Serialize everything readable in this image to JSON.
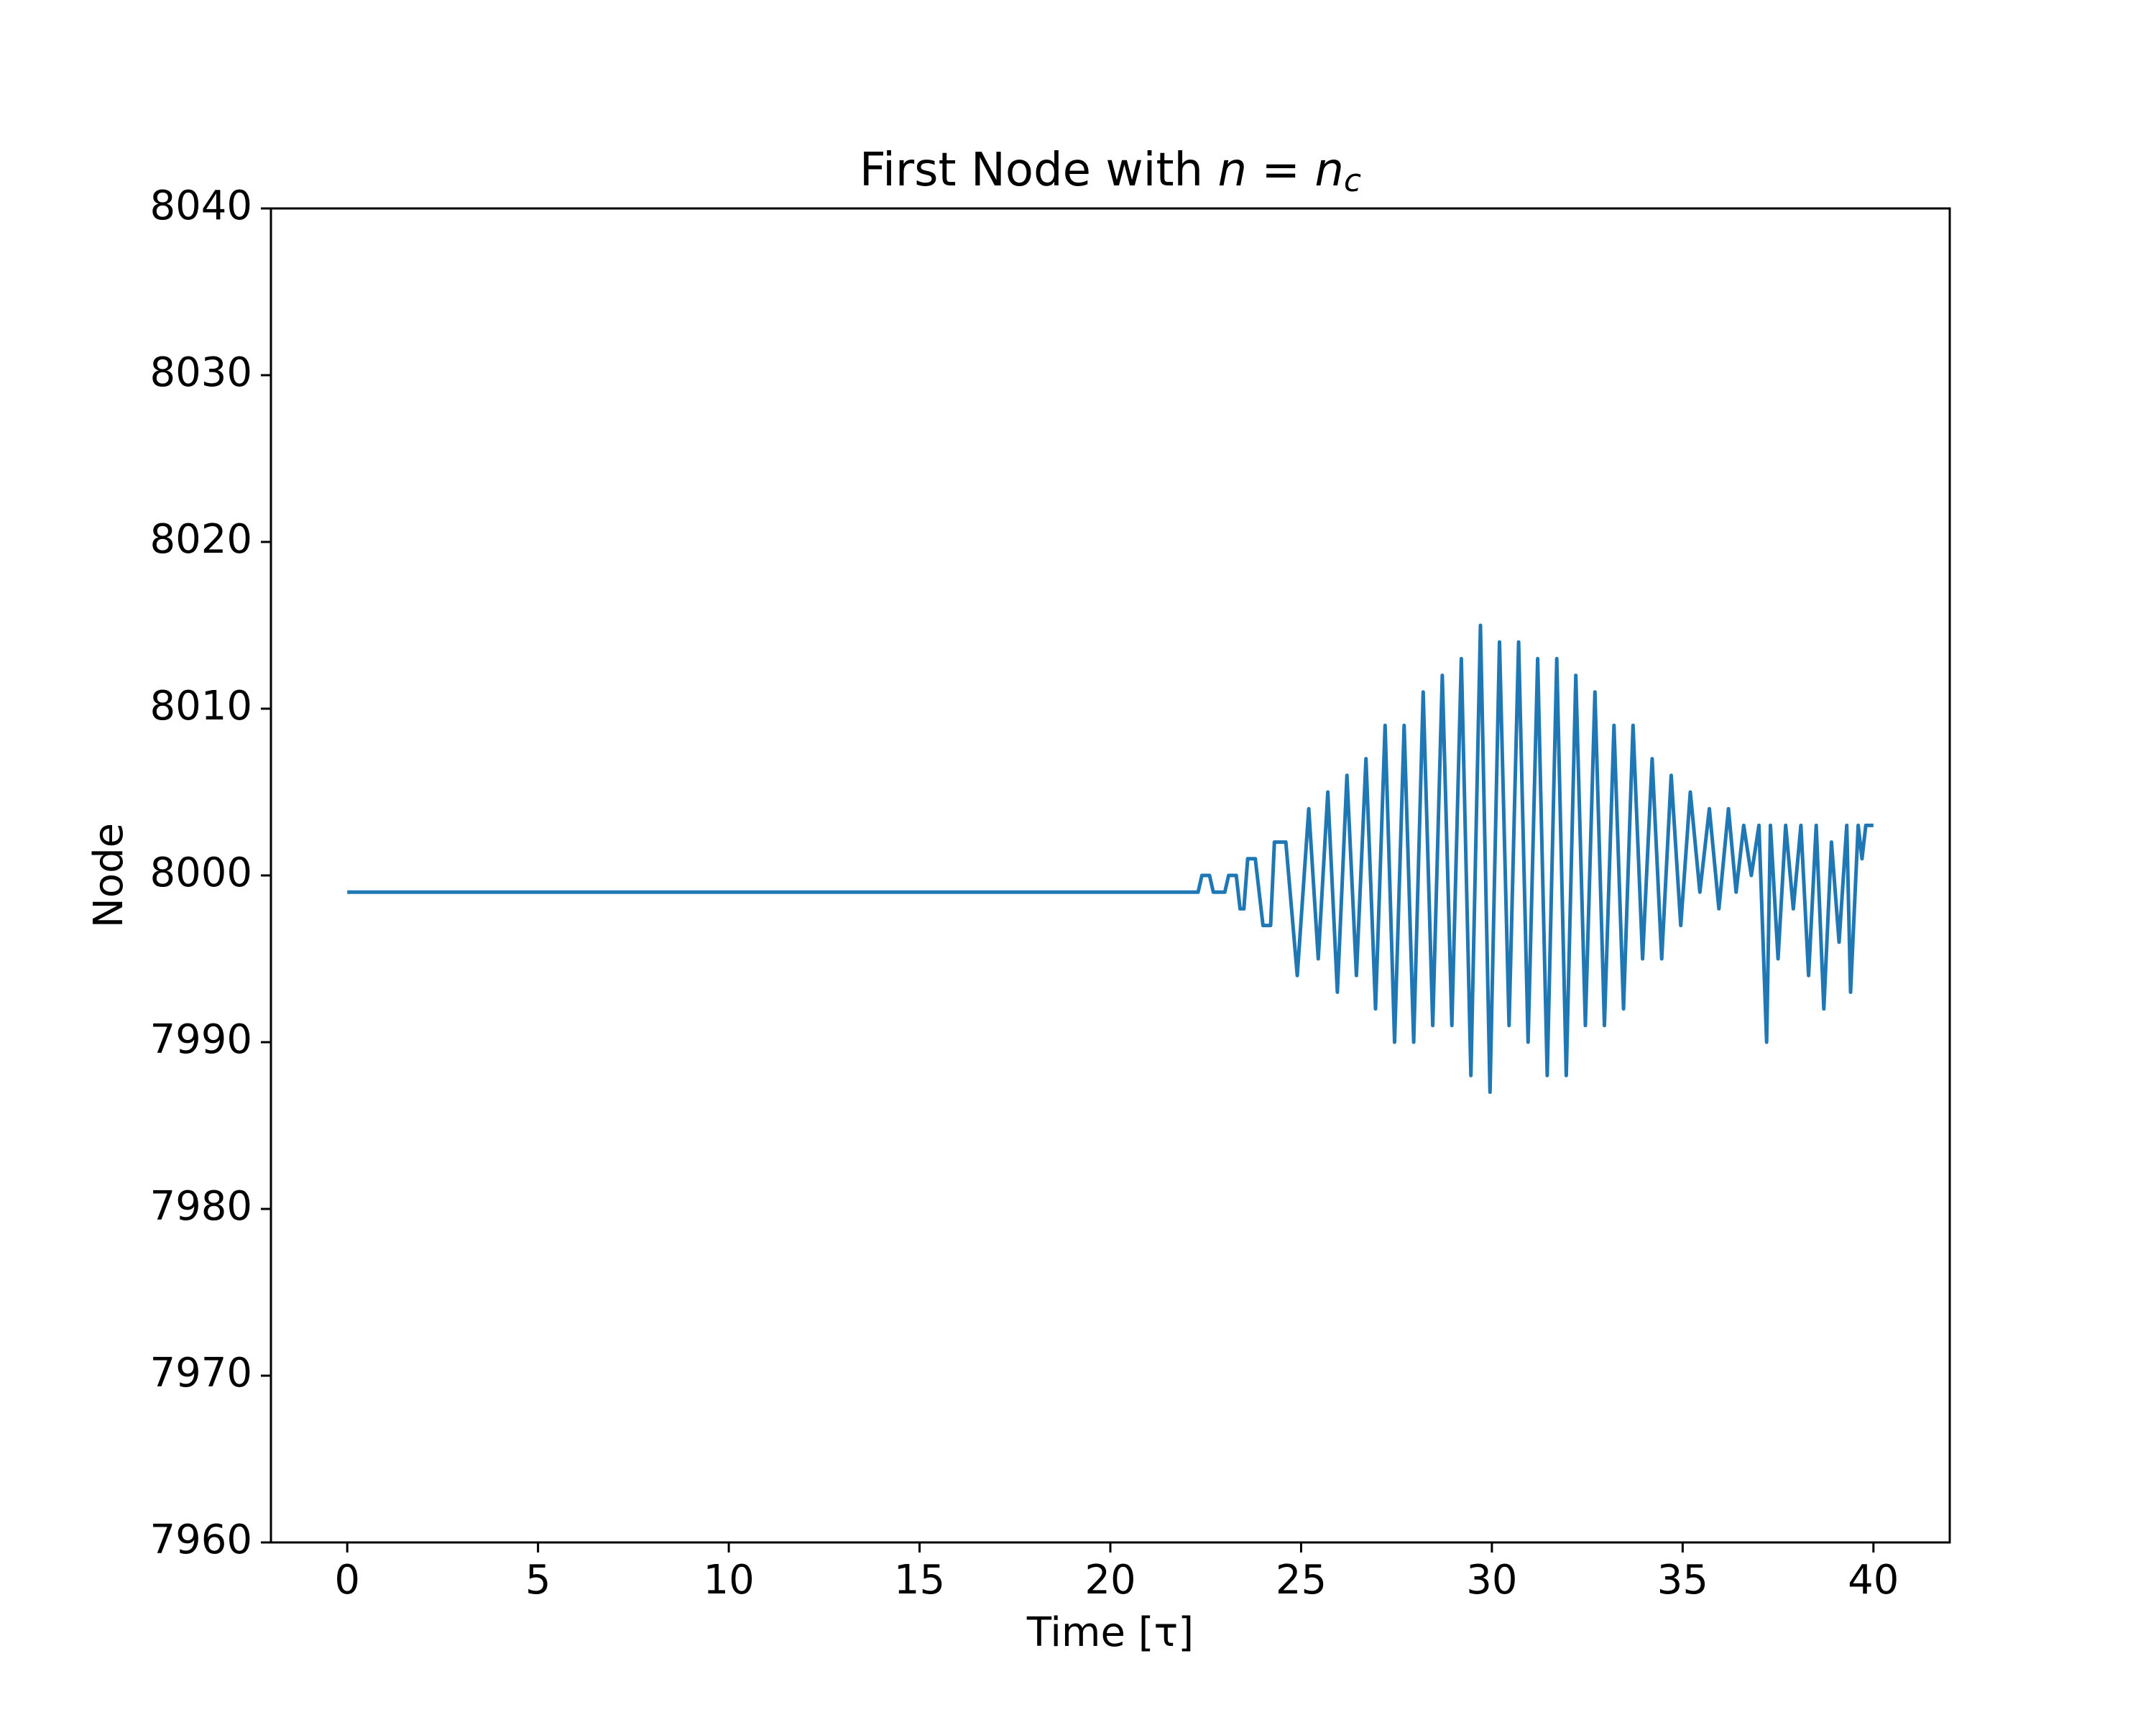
{
  "chart_data": {
    "type": "line",
    "title": {
      "text": "First Node with ",
      "math": "n = n",
      "subscript": "c"
    },
    "xlabel": "Time [τ]",
    "ylabel": "Node",
    "color": "#1f77b4",
    "xlim": [
      -2,
      42
    ],
    "ylim": [
      7960,
      8040
    ],
    "xticks": [
      0,
      5,
      10,
      15,
      20,
      25,
      30,
      35,
      40
    ],
    "yticks": [
      7960,
      7970,
      7980,
      7990,
      8000,
      8010,
      8020,
      8030,
      8040
    ],
    "x": [
      0,
      22.3,
      22.4,
      22.6,
      22.7,
      23.0,
      23.1,
      23.3,
      23.4,
      23.5,
      23.6,
      23.8,
      24.0,
      24.2,
      24.3,
      24.4,
      24.6,
      24.9,
      25.2,
      25.45,
      25.7,
      25.95,
      26.2,
      26.45,
      26.7,
      26.95,
      27.2,
      27.45,
      27.7,
      27.95,
      28.2,
      28.45,
      28.7,
      28.95,
      29.2,
      29.45,
      29.7,
      29.95,
      30.2,
      30.45,
      30.7,
      30.95,
      31.2,
      31.45,
      31.7,
      31.95,
      32.2,
      32.45,
      32.7,
      32.95,
      33.2,
      33.45,
      33.7,
      33.95,
      34.2,
      34.45,
      34.7,
      34.95,
      35.2,
      35.45,
      35.7,
      35.95,
      36.2,
      36.4,
      36.6,
      36.8,
      37.0,
      37.2,
      37.3,
      37.5,
      37.7,
      37.9,
      38.1,
      38.3,
      38.5,
      38.7,
      38.9,
      39.1,
      39.3,
      39.4,
      39.6,
      39.7,
      39.8,
      40.0
    ],
    "values": [
      7999,
      7999,
      8000,
      8000,
      7999,
      7999,
      8000,
      8000,
      7998,
      7998,
      8001,
      8001,
      7997,
      7997,
      8002,
      8002,
      8002,
      7994,
      8004,
      7995,
      8005,
      7993,
      8006,
      7994,
      8007,
      7992,
      8009,
      7990,
      8009,
      7990,
      8011,
      7991,
      8012,
      7991,
      8013,
      7988,
      8015,
      7987,
      8014,
      7991,
      8014,
      7990,
      8013,
      7988,
      8013,
      7988,
      8012,
      7991,
      8011,
      7991,
      8009,
      7992,
      8009,
      7995,
      8007,
      7995,
      8006,
      7997,
      8005,
      7999,
      8004,
      7998,
      8004,
      7999,
      8003,
      8000,
      8003,
      7990,
      8003,
      7995,
      8003,
      7998,
      8003,
      7994,
      8003,
      7992,
      8002,
      7996,
      8003,
      7993,
      8003,
      8001,
      8003,
      8003
    ]
  }
}
